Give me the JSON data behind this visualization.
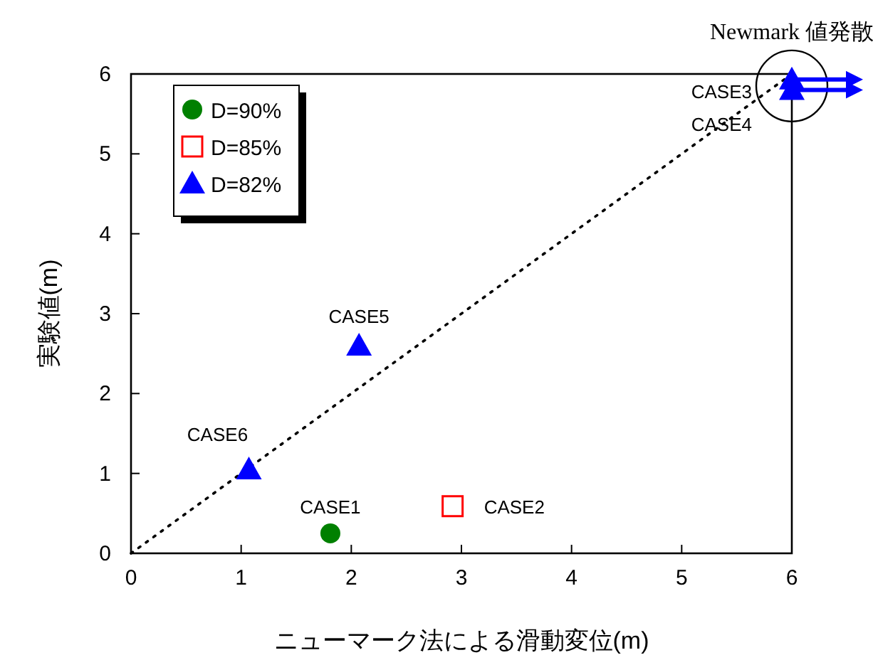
{
  "chart_data": {
    "type": "scatter",
    "xlabel": "ニューマーク法による滑動変位(m)",
    "ylabel": "実験値(m)",
    "xlim": [
      0,
      6
    ],
    "ylim": [
      0,
      6
    ],
    "xticks": [
      0,
      1,
      2,
      3,
      4,
      5,
      6
    ],
    "yticks": [
      0,
      1,
      2,
      3,
      4,
      5,
      6
    ],
    "grid": false,
    "legend": "top left",
    "series": [
      {
        "name": "D=90%",
        "color": "#008000",
        "marker": "circle",
        "x": [
          1.81
        ],
        "values": [
          0.25
        ]
      },
      {
        "name": "D=85%",
        "color": "#ff0000",
        "marker": "square",
        "x": [
          2.92
        ],
        "values": [
          0.59
        ]
      },
      {
        "name": "D=82%",
        "color": "#0000ff",
        "marker": "triangle",
        "x": [
          2.07,
          1.07,
          6,
          6
        ],
        "values": [
          2.6,
          1.05,
          5.93,
          5.8
        ]
      },
      {
        "type": "line",
        "color": "#000000",
        "line_style": "dotted",
        "marker": "none",
        "x": [
          0,
          6
        ],
        "values": [
          0,
          6
        ]
      }
    ],
    "annotations": [
      {
        "text": "CASE1",
        "x": 1.81,
        "y": 0.25
      },
      {
        "text": "CASE2",
        "x": 2.92,
        "y": 0.59
      },
      {
        "text": "CASE5",
        "x": 2.07,
        "y": 2.6
      },
      {
        "text": "CASE6",
        "x": 1.07,
        "y": 1.05
      },
      {
        "text": "CASE3",
        "x": 6,
        "y": 5.93
      },
      {
        "text": "CASE4",
        "x": 6,
        "y": 5.8
      },
      {
        "text": "Newmark 値発散",
        "x": 6,
        "y": 5.85
      }
    ]
  }
}
